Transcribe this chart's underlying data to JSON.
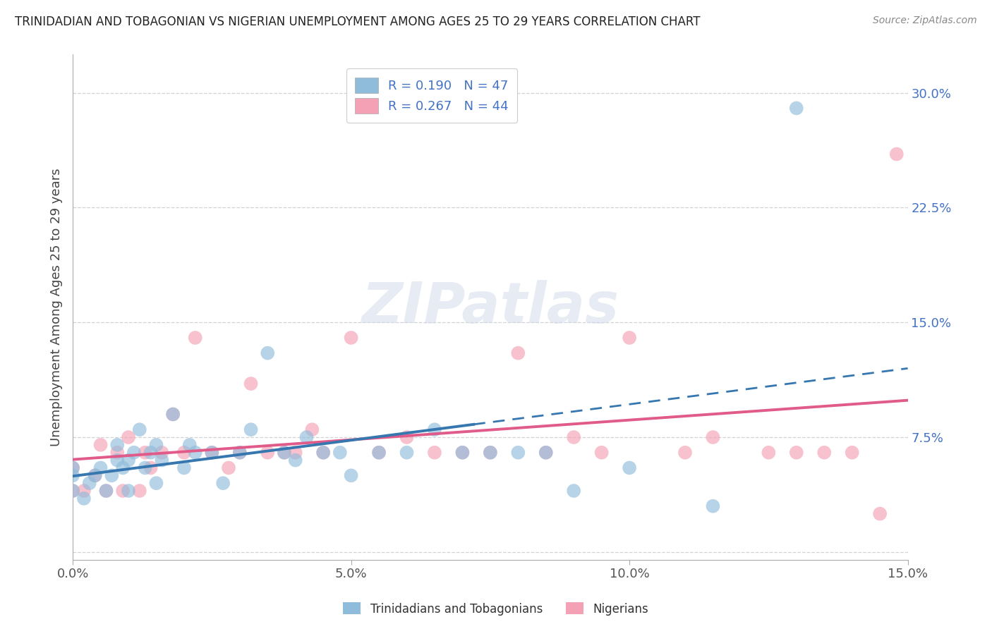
{
  "title": "TRINIDADIAN AND TOBAGONIAN VS NIGERIAN UNEMPLOYMENT AMONG AGES 25 TO 29 YEARS CORRELATION CHART",
  "source": "Source: ZipAtlas.com",
  "ylabel": "Unemployment Among Ages 25 to 29 years",
  "xlim": [
    0.0,
    0.15
  ],
  "ylim": [
    -0.005,
    0.325
  ],
  "xticks": [
    0.0,
    0.05,
    0.1,
    0.15
  ],
  "xticklabels": [
    "0.0%",
    "5.0%",
    "10.0%",
    "15.0%"
  ],
  "yticks": [
    0.0,
    0.075,
    0.15,
    0.225,
    0.3
  ],
  "yticklabels": [
    "",
    "7.5%",
    "15.0%",
    "22.5%",
    "30.0%"
  ],
  "blue_R": 0.19,
  "blue_N": 47,
  "pink_R": 0.267,
  "pink_N": 44,
  "blue_color": "#8fbcdb",
  "pink_color": "#f4a0b5",
  "blue_line_color": "#3777b0",
  "pink_line_color": "#e05a8a",
  "legend_labels": [
    "Trinidadians and Tobagonians",
    "Nigerians"
  ],
  "blue_scatter_x": [
    0.0,
    0.0,
    0.0,
    0.002,
    0.003,
    0.004,
    0.005,
    0.006,
    0.007,
    0.008,
    0.008,
    0.009,
    0.01,
    0.01,
    0.011,
    0.012,
    0.013,
    0.014,
    0.015,
    0.015,
    0.016,
    0.018,
    0.02,
    0.021,
    0.022,
    0.025,
    0.027,
    0.03,
    0.032,
    0.035,
    0.038,
    0.04,
    0.042,
    0.045,
    0.048,
    0.05,
    0.055,
    0.06,
    0.065,
    0.07,
    0.075,
    0.08,
    0.085,
    0.09,
    0.1,
    0.115,
    0.13
  ],
  "blue_scatter_y": [
    0.04,
    0.05,
    0.055,
    0.035,
    0.045,
    0.05,
    0.055,
    0.04,
    0.05,
    0.06,
    0.07,
    0.055,
    0.04,
    0.06,
    0.065,
    0.08,
    0.055,
    0.065,
    0.045,
    0.07,
    0.06,
    0.09,
    0.055,
    0.07,
    0.065,
    0.065,
    0.045,
    0.065,
    0.08,
    0.13,
    0.065,
    0.06,
    0.075,
    0.065,
    0.065,
    0.05,
    0.065,
    0.065,
    0.08,
    0.065,
    0.065,
    0.065,
    0.065,
    0.04,
    0.055,
    0.03,
    0.29
  ],
  "pink_scatter_x": [
    0.0,
    0.0,
    0.002,
    0.004,
    0.005,
    0.006,
    0.008,
    0.009,
    0.01,
    0.012,
    0.013,
    0.014,
    0.016,
    0.018,
    0.02,
    0.022,
    0.025,
    0.028,
    0.03,
    0.032,
    0.035,
    0.038,
    0.04,
    0.043,
    0.045,
    0.05,
    0.055,
    0.06,
    0.065,
    0.07,
    0.075,
    0.08,
    0.085,
    0.09,
    0.095,
    0.1,
    0.11,
    0.115,
    0.125,
    0.13,
    0.135,
    0.14,
    0.145,
    0.148
  ],
  "pink_scatter_y": [
    0.04,
    0.055,
    0.04,
    0.05,
    0.07,
    0.04,
    0.065,
    0.04,
    0.075,
    0.04,
    0.065,
    0.055,
    0.065,
    0.09,
    0.065,
    0.14,
    0.065,
    0.055,
    0.065,
    0.11,
    0.065,
    0.065,
    0.065,
    0.08,
    0.065,
    0.14,
    0.065,
    0.075,
    0.065,
    0.065,
    0.065,
    0.13,
    0.065,
    0.075,
    0.065,
    0.14,
    0.065,
    0.075,
    0.065,
    0.065,
    0.065,
    0.065,
    0.025,
    0.26
  ],
  "blue_line_solid_end": 0.072,
  "background_color": "#ffffff",
  "grid_color": "#c8c8c8",
  "tick_color": "#4472c4",
  "watermark_text": "ZIPatlas"
}
